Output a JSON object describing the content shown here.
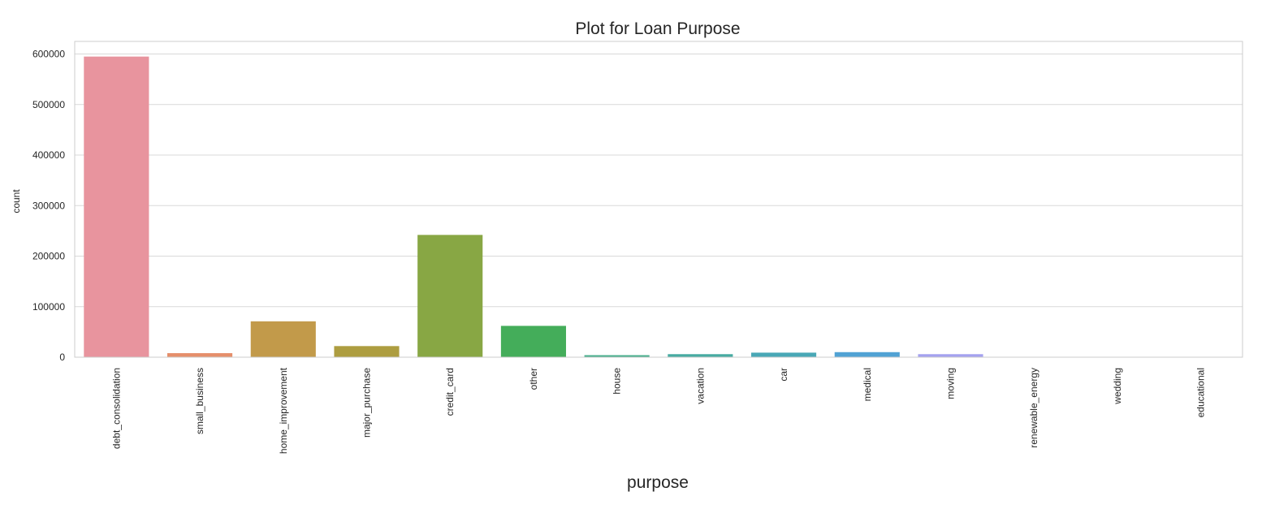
{
  "chart_data": {
    "type": "bar",
    "title": "Plot for Loan Purpose",
    "xlabel": "purpose",
    "ylabel": "count",
    "ylim": [
      0,
      625000
    ],
    "yticks": [
      0,
      100000,
      200000,
      300000,
      400000,
      500000,
      600000
    ],
    "ytick_labels": [
      "0",
      "100000",
      "200000",
      "300000",
      "400000",
      "500000",
      "600000"
    ],
    "grid": true,
    "categories": [
      "debt_consolidation",
      "small_business",
      "home_improvement",
      "major_purchase",
      "credit_card",
      "other",
      "house",
      "vacation",
      "car",
      "medical",
      "moving",
      "renewable_energy",
      "wedding",
      "educational"
    ],
    "values": [
      595000,
      8000,
      71000,
      22000,
      242000,
      62000,
      4000,
      6000,
      9000,
      10000,
      6000,
      700,
      200,
      100
    ],
    "colors": [
      "#e8949e",
      "#e58f6b",
      "#c29a4a",
      "#ad9d40",
      "#88a744",
      "#44ad5a",
      "#48ae8c",
      "#47aba1",
      "#49a8b6",
      "#51a2d4",
      "#a4a1ef",
      "#cf97e3",
      "#e590d3",
      "#e891b8"
    ]
  }
}
